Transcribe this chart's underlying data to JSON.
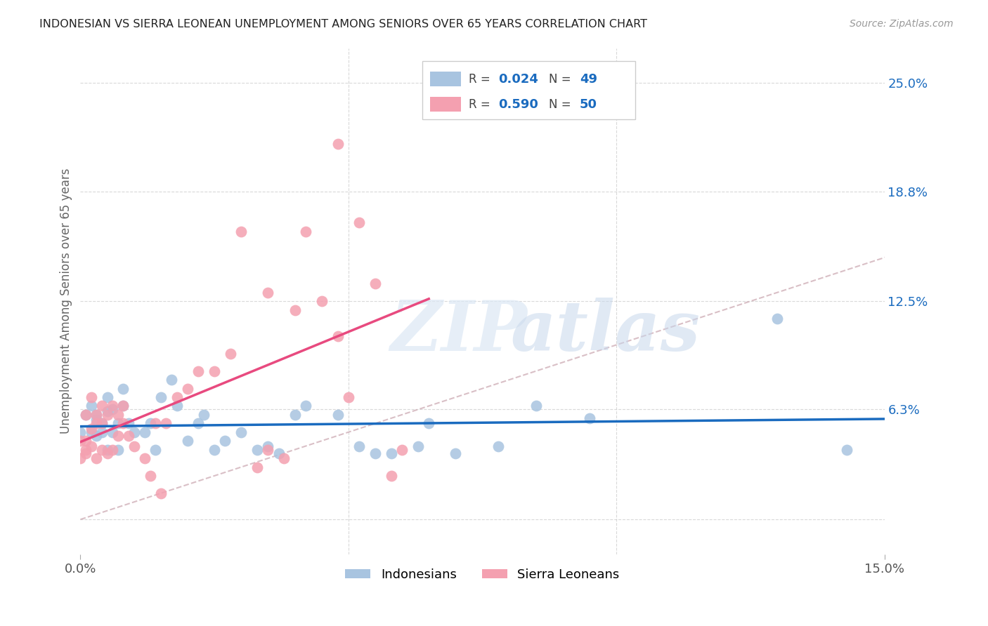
{
  "title": "INDONESIAN VS SIERRA LEONEAN UNEMPLOYMENT AMONG SENIORS OVER 65 YEARS CORRELATION CHART",
  "source": "Source: ZipAtlas.com",
  "ylabel": "Unemployment Among Seniors over 65 years",
  "xlim": [
    0.0,
    0.15
  ],
  "ylim": [
    -0.02,
    0.27
  ],
  "xticklabels": [
    "0.0%",
    "15.0%"
  ],
  "ytick_positions": [
    0.0,
    0.063,
    0.125,
    0.188,
    0.25
  ],
  "ytick_labels": [
    "",
    "6.3%",
    "12.5%",
    "18.8%",
    "25.0%"
  ],
  "indonesian_color": "#a8c4e0",
  "sierra_leonean_color": "#f4a0b0",
  "indonesian_line_color": "#1a6bbf",
  "sierra_leonean_line_color": "#e84a7f",
  "diagonal_line_color": "#d0b0b8",
  "r_indonesian": 0.024,
  "n_indonesian": 49,
  "r_sierra": 0.59,
  "n_sierra": 50,
  "indonesian_x": [
    0.0,
    0.001,
    0.002,
    0.002,
    0.003,
    0.003,
    0.003,
    0.004,
    0.004,
    0.005,
    0.005,
    0.005,
    0.006,
    0.006,
    0.007,
    0.007,
    0.008,
    0.008,
    0.009,
    0.01,
    0.012,
    0.013,
    0.014,
    0.015,
    0.017,
    0.018,
    0.02,
    0.022,
    0.023,
    0.025,
    0.027,
    0.03,
    0.033,
    0.035,
    0.037,
    0.04,
    0.042,
    0.048,
    0.052,
    0.055,
    0.058,
    0.063,
    0.065,
    0.07,
    0.078,
    0.085,
    0.095,
    0.13,
    0.143
  ],
  "indonesian_y": [
    0.05,
    0.06,
    0.065,
    0.05,
    0.06,
    0.048,
    0.057,
    0.055,
    0.05,
    0.07,
    0.062,
    0.04,
    0.063,
    0.05,
    0.055,
    0.04,
    0.075,
    0.065,
    0.055,
    0.05,
    0.05,
    0.055,
    0.04,
    0.07,
    0.08,
    0.065,
    0.045,
    0.055,
    0.06,
    0.04,
    0.045,
    0.05,
    0.04,
    0.042,
    0.038,
    0.06,
    0.065,
    0.06,
    0.042,
    0.038,
    0.038,
    0.042,
    0.055,
    0.038,
    0.042,
    0.065,
    0.058,
    0.115,
    0.04
  ],
  "sierra_x": [
    0.0,
    0.0,
    0.001,
    0.001,
    0.001,
    0.001,
    0.002,
    0.002,
    0.002,
    0.003,
    0.003,
    0.003,
    0.004,
    0.004,
    0.004,
    0.005,
    0.005,
    0.006,
    0.006,
    0.007,
    0.007,
    0.008,
    0.008,
    0.009,
    0.01,
    0.012,
    0.013,
    0.014,
    0.015,
    0.016,
    0.018,
    0.02,
    0.022,
    0.025,
    0.028,
    0.03,
    0.033,
    0.035,
    0.038,
    0.04,
    0.042,
    0.045,
    0.048,
    0.05,
    0.052,
    0.055,
    0.058,
    0.06,
    0.048,
    0.035
  ],
  "sierra_y": [
    0.045,
    0.035,
    0.06,
    0.04,
    0.045,
    0.038,
    0.07,
    0.052,
    0.042,
    0.06,
    0.055,
    0.035,
    0.065,
    0.055,
    0.04,
    0.06,
    0.038,
    0.065,
    0.04,
    0.06,
    0.048,
    0.065,
    0.055,
    0.048,
    0.042,
    0.035,
    0.025,
    0.055,
    0.015,
    0.055,
    0.07,
    0.075,
    0.085,
    0.085,
    0.095,
    0.165,
    0.03,
    0.04,
    0.035,
    0.12,
    0.165,
    0.125,
    0.105,
    0.07,
    0.17,
    0.135,
    0.025,
    0.04,
    0.215,
    0.13
  ],
  "background_color": "#ffffff",
  "grid_color": "#d0d0d0",
  "watermark_zip": "ZIP",
  "watermark_atlas": "atlas",
  "accent_color": "#1a6bbf"
}
